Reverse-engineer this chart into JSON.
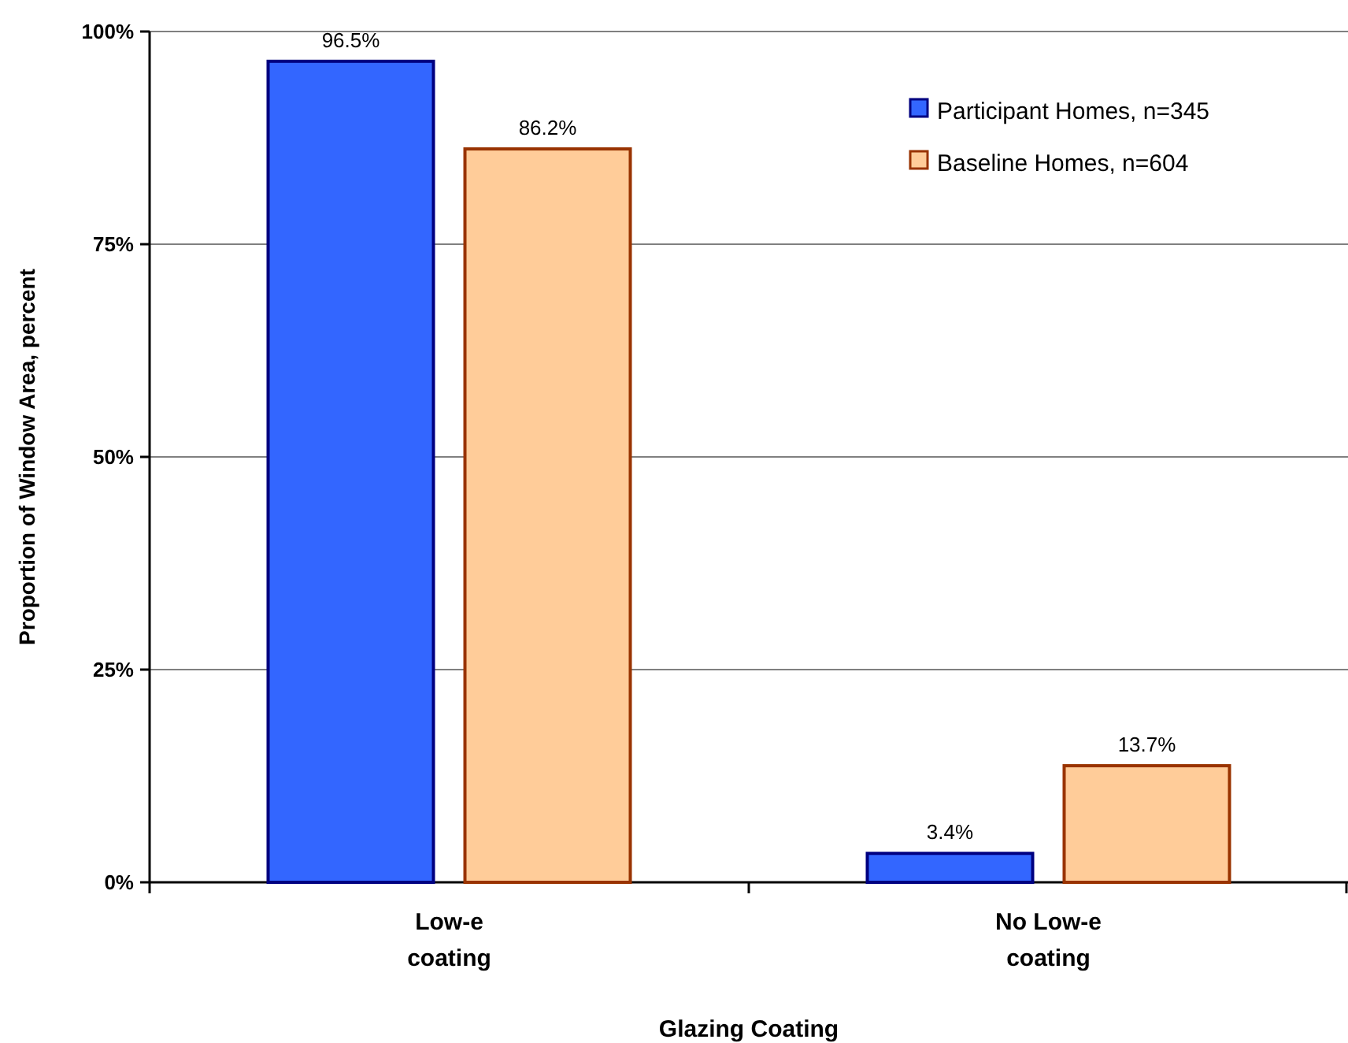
{
  "chart_data": {
    "type": "bar",
    "xlabel": "Glazing Coating",
    "ylabel": "Proportion of Window Area, percent",
    "categories": [
      "Low-e coating",
      "No Low-e coating"
    ],
    "series": [
      {
        "name": "Participant Homes, n=345",
        "color": "#3366ff",
        "values": [
          96.5,
          3.4
        ]
      },
      {
        "name": "Baseline Homes, n=604",
        "color": "#ffcc99",
        "values": [
          86.2,
          13.7
        ]
      }
    ],
    "value_labels": [
      [
        "96.5%",
        "3.4%"
      ],
      [
        "86.2%",
        "13.7%"
      ]
    ],
    "ylim": [
      0,
      100
    ],
    "yticks": [
      {
        "value": 0,
        "label": "0%"
      },
      {
        "value": 25,
        "label": "25%"
      },
      {
        "value": 50,
        "label": "50%"
      },
      {
        "value": 75,
        "label": "75%"
      },
      {
        "value": 100,
        "label": "100%"
      }
    ],
    "grid": "y",
    "legend": "top right"
  }
}
